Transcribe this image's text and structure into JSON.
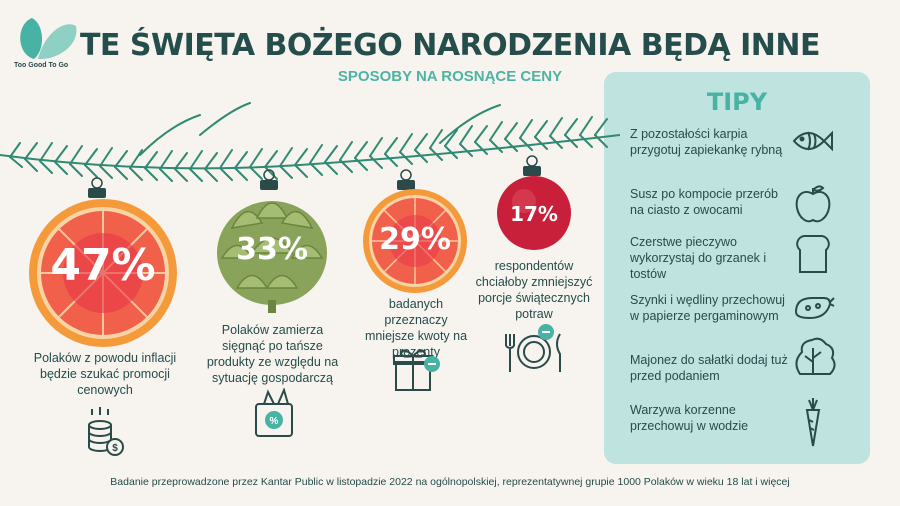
{
  "header": {
    "title": "TE ŚWIĘTA BOŻEGO NARODZENIA BĘDĄ INNE",
    "subtitle": "SPOSOBY NA ROSNĄCE CENY",
    "logo_text": "Too Good To Go"
  },
  "stats": [
    {
      "percent": "47%",
      "text": "Polaków z powodu inflacji będzie szukać promocji cenowych"
    },
    {
      "percent": "33%",
      "text": "Polaków zamierza sięgnąć po tańsze produkty ze względu na sytuację gospodarczą"
    },
    {
      "percent": "29%",
      "text": "badanych przeznaczy mniejsze kwoty na prezenty"
    },
    {
      "percent": "17%",
      "text": "respondentów chciałoby zmniejszyć porcje świątecznych potraw"
    }
  ],
  "tips": {
    "title": "TIPY",
    "items": [
      {
        "text": "Z pozostałości karpia przygotuj zapiekankę rybną",
        "icon": "fish-icon"
      },
      {
        "text": "Susz po kompocie przerób na ciasto z owocami",
        "icon": "apple-icon"
      },
      {
        "text": "Czerstwe pieczywo wykorzystaj do grzanek i tostów",
        "icon": "bread-icon"
      },
      {
        "text": "Szynki i wędliny przechowuj w papierze pergaminowym",
        "icon": "sausage-icon"
      },
      {
        "text": "Majonez do sałatki dodaj tuż przed podaniem",
        "icon": "lettuce-icon"
      },
      {
        "text": "Warzywa korzenne przechowuj w wodzie",
        "icon": "carrot-icon"
      }
    ]
  },
  "footer": "Badanie przeprowadzone przez Kantar Public w listopadzie 2022 na ogólnopolskiej, reprezentatywnej grupie 1000 Polaków w wieku 18 lat i więcej",
  "colors": {
    "teal_dark": "#244d4c",
    "teal_light": "#bfe3df",
    "accent": "#48b3a5",
    "orange": "#f47a4a",
    "red": "#c8203a",
    "green": "#8aa35a"
  }
}
